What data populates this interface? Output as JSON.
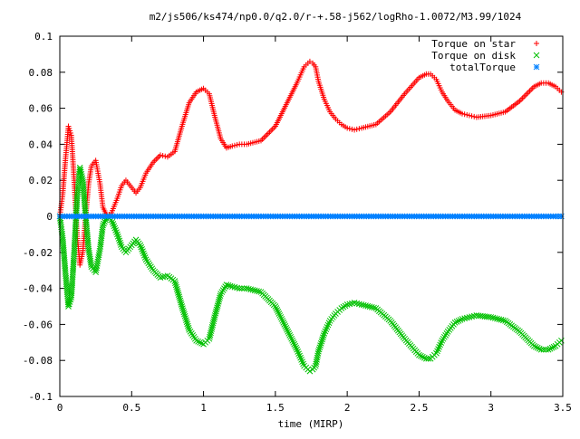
{
  "chart_data": {
    "type": "scatter",
    "title": "m2/js506/ks474/np0.0/q2.0/r-+.58-j562/logRho-1.0072/M3.99/1024",
    "xlabel": "time (MIRP)",
    "ylabel": "",
    "xlim": [
      0,
      3.5
    ],
    "ylim": [
      -0.1,
      0.1
    ],
    "xticks": [
      0,
      0.5,
      1,
      1.5,
      2,
      2.5,
      3,
      3.5
    ],
    "xtick_labels": [
      "0",
      "0.5",
      "1",
      "1.5",
      "2",
      "2.5",
      "3",
      "3.5"
    ],
    "yticks": [
      -0.1,
      -0.08,
      -0.06,
      -0.04,
      -0.02,
      0,
      0.02,
      0.04,
      0.06,
      0.08,
      0.1
    ],
    "ytick_labels": [
      "-0.1",
      "-0.08",
      "-0.06",
      "-0.04",
      "-0.02",
      "0",
      "0.02",
      "0.04",
      "0.06",
      "0.08",
      "0.1"
    ],
    "grid": false,
    "legend_position": "top-right",
    "series": [
      {
        "name": "Torque on star",
        "marker": "+",
        "color": "#ff0000",
        "x": [
          0,
          0.02,
          0.04,
          0.06,
          0.08,
          0.1,
          0.12,
          0.14,
          0.16,
          0.18,
          0.2,
          0.22,
          0.25,
          0.28,
          0.3,
          0.33,
          0.36,
          0.4,
          0.43,
          0.46,
          0.5,
          0.53,
          0.56,
          0.6,
          0.65,
          0.7,
          0.75,
          0.8,
          0.85,
          0.9,
          0.95,
          1.0,
          1.04,
          1.08,
          1.12,
          1.16,
          1.2,
          1.25,
          1.3,
          1.4,
          1.5,
          1.55,
          1.6,
          1.65,
          1.7,
          1.74,
          1.76,
          1.78,
          1.8,
          1.84,
          1.88,
          1.92,
          1.96,
          2.0,
          2.05,
          2.1,
          2.2,
          2.3,
          2.4,
          2.5,
          2.55,
          2.58,
          2.62,
          2.66,
          2.7,
          2.75,
          2.8,
          2.85,
          2.9,
          3.0,
          3.1,
          3.2,
          3.3,
          3.35,
          3.4,
          3.45,
          3.49
        ],
        "y": [
          0,
          0.012,
          0.032,
          0.05,
          0.045,
          0.02,
          -0.01,
          -0.027,
          -0.02,
          0.0,
          0.018,
          0.028,
          0.031,
          0.018,
          0.005,
          0.0,
          0.002,
          0.01,
          0.017,
          0.02,
          0.016,
          0.013,
          0.016,
          0.024,
          0.03,
          0.034,
          0.033,
          0.036,
          0.05,
          0.063,
          0.069,
          0.071,
          0.068,
          0.055,
          0.043,
          0.038,
          0.039,
          0.04,
          0.04,
          0.042,
          0.05,
          0.058,
          0.066,
          0.074,
          0.083,
          0.086,
          0.085,
          0.083,
          0.075,
          0.065,
          0.058,
          0.054,
          0.051,
          0.049,
          0.048,
          0.049,
          0.051,
          0.058,
          0.068,
          0.077,
          0.079,
          0.079,
          0.076,
          0.069,
          0.064,
          0.059,
          0.057,
          0.056,
          0.055,
          0.056,
          0.058,
          0.064,
          0.072,
          0.074,
          0.074,
          0.072,
          0.069
        ]
      },
      {
        "name": "Torque on disk",
        "marker": "x",
        "color": "#00c000",
        "x": [
          0,
          0.02,
          0.04,
          0.06,
          0.08,
          0.1,
          0.12,
          0.14,
          0.16,
          0.18,
          0.2,
          0.22,
          0.25,
          0.28,
          0.3,
          0.33,
          0.36,
          0.4,
          0.43,
          0.46,
          0.5,
          0.53,
          0.56,
          0.6,
          0.65,
          0.7,
          0.75,
          0.8,
          0.85,
          0.9,
          0.95,
          1.0,
          1.04,
          1.08,
          1.12,
          1.16,
          1.2,
          1.25,
          1.3,
          1.4,
          1.5,
          1.55,
          1.6,
          1.65,
          1.7,
          1.74,
          1.76,
          1.78,
          1.8,
          1.84,
          1.88,
          1.92,
          1.96,
          2.0,
          2.05,
          2.1,
          2.2,
          2.3,
          2.4,
          2.5,
          2.55,
          2.58,
          2.62,
          2.66,
          2.7,
          2.75,
          2.8,
          2.85,
          2.9,
          3.0,
          3.1,
          3.2,
          3.3,
          3.35,
          3.4,
          3.45,
          3.49
        ],
        "y": [
          0,
          -0.012,
          -0.032,
          -0.05,
          -0.045,
          -0.02,
          0.01,
          0.027,
          0.02,
          0.0,
          -0.018,
          -0.028,
          -0.031,
          -0.018,
          -0.005,
          0.0,
          -0.002,
          -0.01,
          -0.017,
          -0.02,
          -0.016,
          -0.013,
          -0.016,
          -0.024,
          -0.03,
          -0.034,
          -0.033,
          -0.036,
          -0.05,
          -0.063,
          -0.069,
          -0.071,
          -0.068,
          -0.055,
          -0.043,
          -0.038,
          -0.039,
          -0.04,
          -0.04,
          -0.042,
          -0.05,
          -0.058,
          -0.066,
          -0.074,
          -0.083,
          -0.086,
          -0.085,
          -0.083,
          -0.075,
          -0.065,
          -0.058,
          -0.054,
          -0.051,
          -0.049,
          -0.048,
          -0.049,
          -0.051,
          -0.058,
          -0.068,
          -0.077,
          -0.079,
          -0.079,
          -0.076,
          -0.069,
          -0.064,
          -0.059,
          -0.057,
          -0.056,
          -0.055,
          -0.056,
          -0.058,
          -0.064,
          -0.072,
          -0.074,
          -0.074,
          -0.072,
          -0.069
        ]
      },
      {
        "name": "totalTorque",
        "marker": "*",
        "color": "#0080ff",
        "x": [
          0,
          0.05,
          0.1,
          0.15,
          0.2,
          0.25,
          0.3,
          0.35,
          0.4,
          0.45,
          0.5,
          0.55,
          0.6,
          0.65,
          0.7,
          0.75,
          0.8,
          0.85,
          0.9,
          0.95,
          1.0,
          1.05,
          1.1,
          1.15,
          1.2,
          1.25,
          1.3,
          1.35,
          1.4,
          1.45,
          1.5,
          1.55,
          1.6,
          1.65,
          1.7,
          1.75,
          1.8,
          1.85,
          1.9,
          1.95,
          2.0,
          2.05,
          2.1,
          2.15,
          2.2,
          2.25,
          2.3,
          2.35,
          2.4,
          2.45,
          2.5,
          2.55,
          2.6,
          2.65,
          2.7,
          2.75,
          2.8,
          2.85,
          2.9,
          2.95,
          3.0,
          3.05,
          3.1,
          3.15,
          3.2,
          3.25,
          3.3,
          3.35,
          3.4,
          3.45,
          3.49
        ],
        "y": [
          0,
          0,
          0,
          0,
          0,
          0,
          0,
          0,
          0,
          0,
          0,
          0,
          0,
          0,
          0,
          0,
          0,
          0,
          0,
          0,
          0,
          0,
          0,
          0,
          0,
          0,
          0,
          0,
          0,
          0,
          0,
          0,
          0,
          0,
          0,
          0,
          0,
          0,
          0,
          0,
          0,
          0,
          0,
          0,
          0,
          0,
          0,
          0,
          0,
          0,
          0,
          0,
          0,
          0,
          0,
          0,
          0,
          0,
          0,
          0,
          0,
          0,
          0,
          0,
          0,
          0,
          0,
          0,
          0,
          0,
          0
        ]
      }
    ]
  }
}
